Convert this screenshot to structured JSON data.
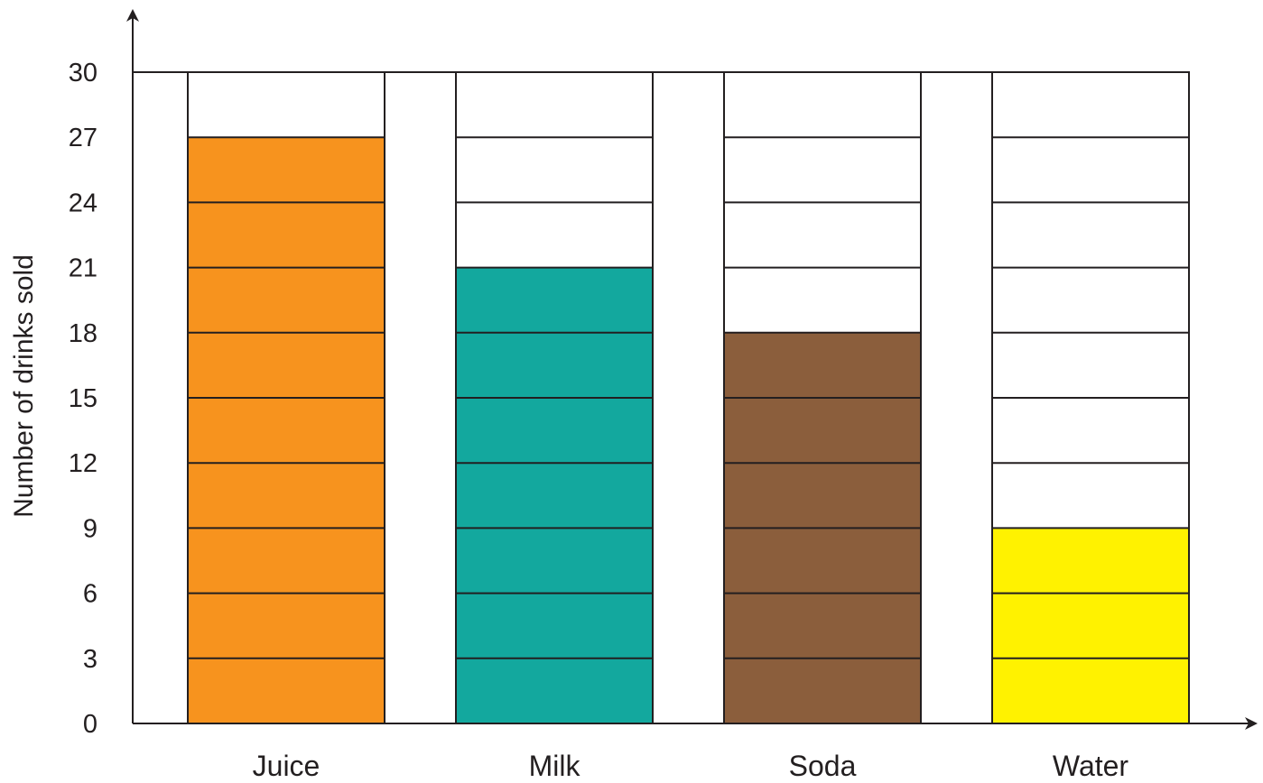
{
  "chart_data": {
    "type": "bar",
    "title": "",
    "xlabel": "",
    "ylabel": "Number of drinks sold",
    "categories": [
      "Juice",
      "Milk",
      "Soda",
      "Water"
    ],
    "values": [
      27,
      21,
      18,
      9
    ],
    "bar_colors": [
      "#f7931e",
      "#13a89e",
      "#8b5e3c",
      "#fff200"
    ],
    "ylim": [
      0,
      30
    ],
    "yticks": [
      "0",
      "3",
      "6",
      "9",
      "12",
      "15",
      "18",
      "21",
      "24",
      "27",
      "30"
    ],
    "ytick_step": 3,
    "grid": "cell lines inside bar columns every 3 units",
    "legend": "none"
  }
}
